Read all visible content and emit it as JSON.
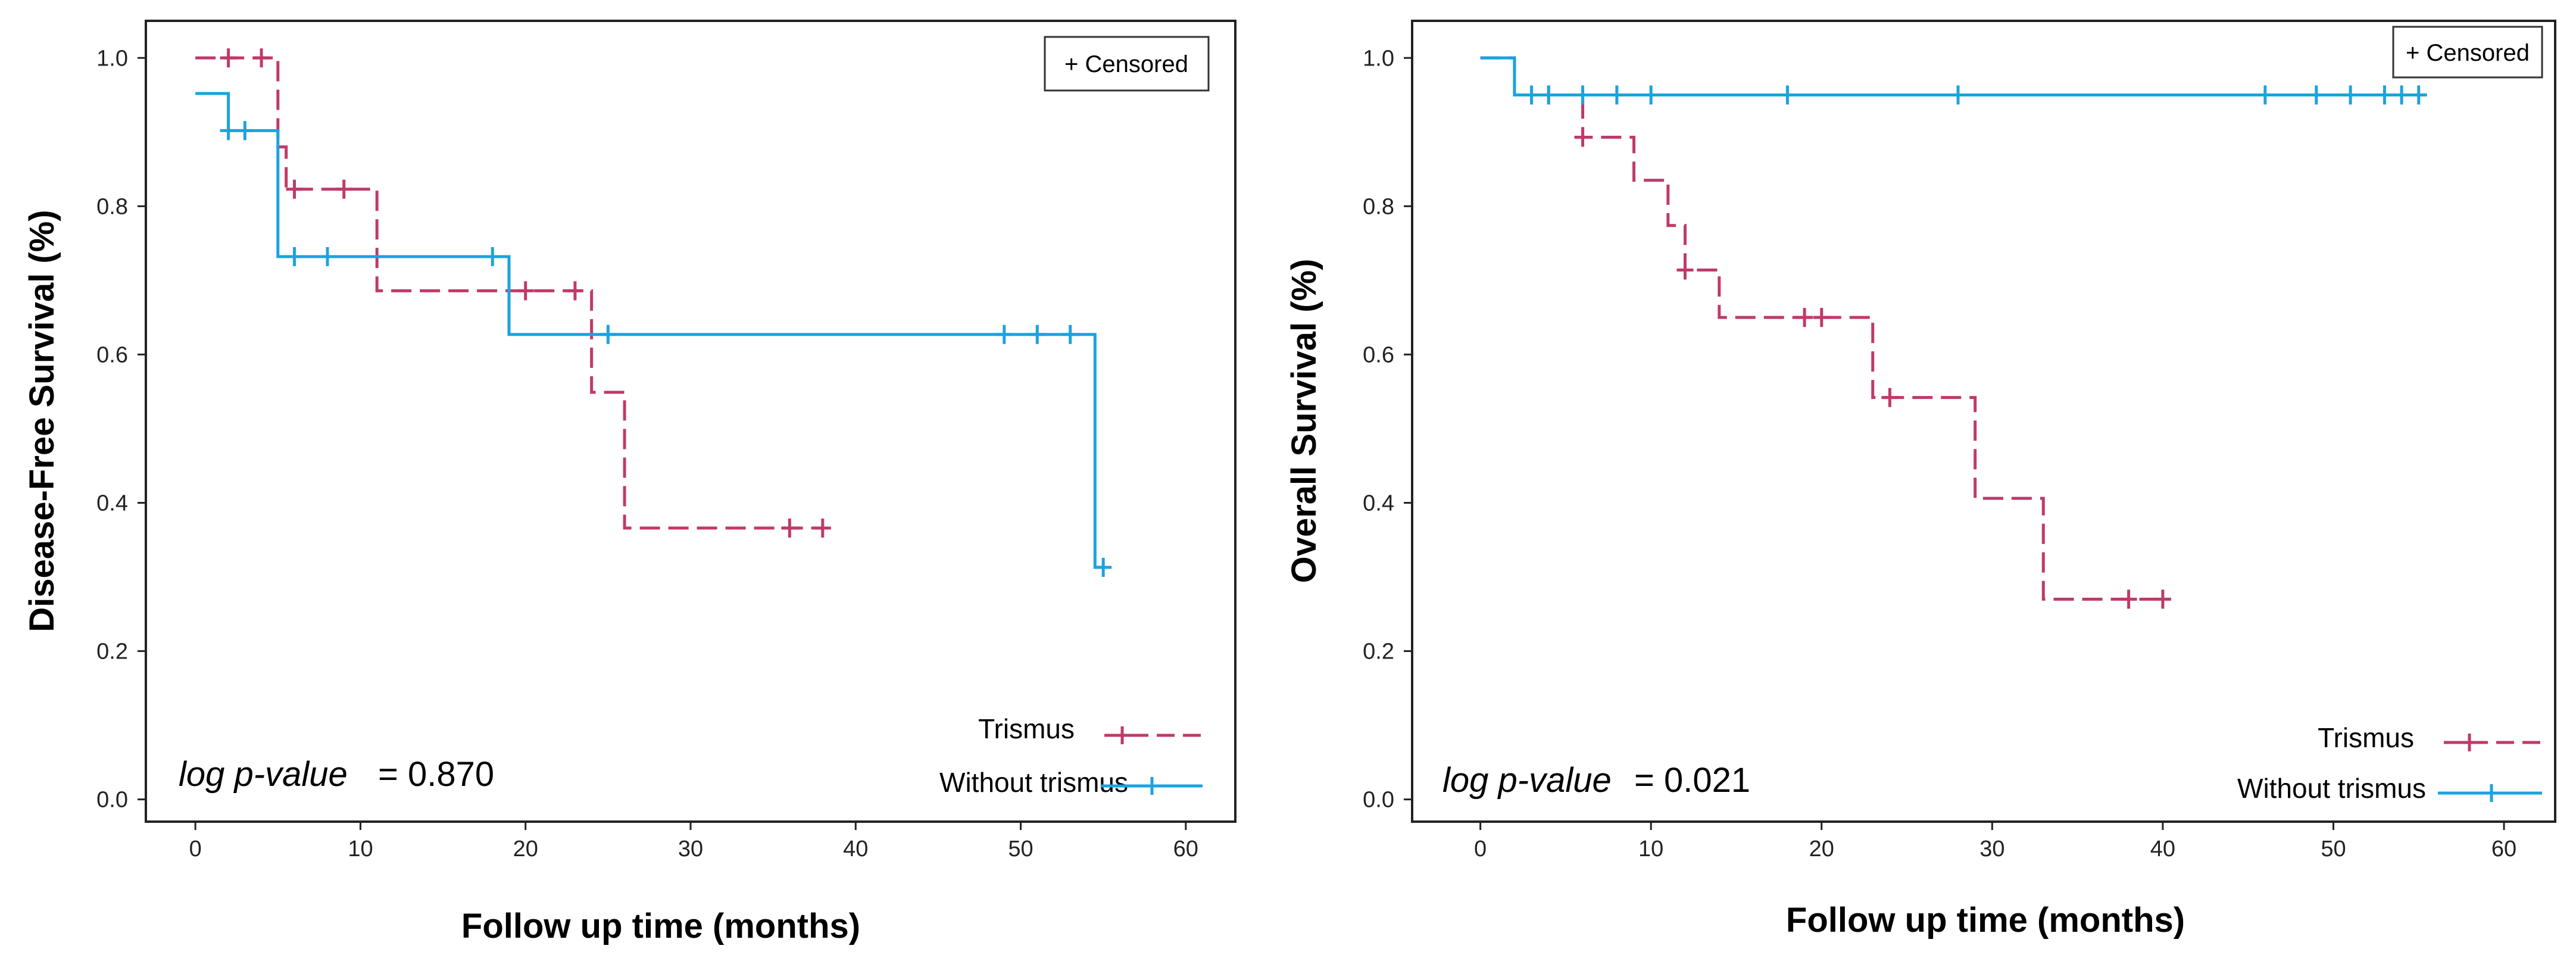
{
  "chart_data": [
    {
      "type": "line",
      "subtype": "kaplan-meier",
      "ylabel": "Disease-Free Survival  (%)",
      "xlabel": "Follow up time (months)",
      "xlim": [
        -3,
        63
      ],
      "ylim": [
        -0.03,
        1.05
      ],
      "xticks": [
        0,
        10,
        20,
        30,
        40,
        50,
        60
      ],
      "yticks": [
        0.0,
        0.2,
        0.4,
        0.6,
        0.8,
        1.0
      ],
      "censored_legend": "+ Censored",
      "pvalue_label": "log p-value",
      "pvalue_text": "= 0.870",
      "series": [
        {
          "name": "Trismus",
          "color": "#c0396b",
          "dash": true,
          "steps": [
            [
              0,
              1.0
            ],
            [
              5,
              0.88
            ],
            [
              5.5,
              0.823
            ],
            [
              11,
              0.686
            ],
            [
              24,
              0.549
            ],
            [
              26,
              0.366
            ],
            [
              38,
              0.366
            ]
          ],
          "censored": [
            [
              2,
              1.0
            ],
            [
              4,
              1.0
            ],
            [
              6,
              0.823
            ],
            [
              9,
              0.823
            ],
            [
              20,
              0.686
            ],
            [
              23,
              0.686
            ],
            [
              36,
              0.366
            ],
            [
              38,
              0.366
            ]
          ]
        },
        {
          "name": "Without trismus",
          "color": "#1aa3e0",
          "dash": false,
          "steps": [
            [
              0,
              0.952
            ],
            [
              2,
              0.902
            ],
            [
              5,
              0.732
            ],
            [
              19,
              0.627
            ],
            [
              54.5,
              0.313
            ],
            [
              55,
              0.313
            ]
          ],
          "censored": [
            [
              2,
              0.902
            ],
            [
              3,
              0.902
            ],
            [
              6,
              0.732
            ],
            [
              8,
              0.732
            ],
            [
              18,
              0.732
            ],
            [
              25,
              0.627
            ],
            [
              49,
              0.627
            ],
            [
              51,
              0.627
            ],
            [
              53,
              0.627
            ],
            [
              55,
              0.313
            ]
          ]
        }
      ]
    },
    {
      "type": "line",
      "subtype": "kaplan-meier",
      "ylabel": "Overall  Survival  (%)",
      "xlabel": "Follow up time (months)",
      "xlim": [
        -4,
        63
      ],
      "ylim": [
        -0.03,
        1.05
      ],
      "xticks": [
        0,
        10,
        20,
        30,
        40,
        50,
        60
      ],
      "yticks": [
        0.0,
        0.2,
        0.4,
        0.6,
        0.8,
        1.0
      ],
      "censored_legend": "+ Censored",
      "pvalue_label": "log p-value",
      "pvalue_text": "= 0.021",
      "series": [
        {
          "name": "Trismus",
          "color": "#c0396b",
          "dash": true,
          "steps": [
            [
              0,
              1.0
            ],
            [
              2,
              0.95
            ],
            [
              6,
              0.893
            ],
            [
              9,
              0.835
            ],
            [
              11,
              0.774
            ],
            [
              12,
              0.714
            ],
            [
              14,
              0.65
            ],
            [
              23,
              0.542
            ],
            [
              29,
              0.406
            ],
            [
              33,
              0.27
            ],
            [
              40,
              0.27
            ]
          ],
          "censored": [
            [
              4,
              0.95
            ],
            [
              6,
              0.893
            ],
            [
              12,
              0.714
            ],
            [
              19,
              0.65
            ],
            [
              20,
              0.65
            ],
            [
              24,
              0.542
            ],
            [
              38,
              0.27
            ],
            [
              40,
              0.27
            ]
          ]
        },
        {
          "name": "Without trismus",
          "color": "#1aa3e0",
          "dash": false,
          "steps": [
            [
              0,
              1.0
            ],
            [
              2,
              0.95
            ],
            [
              55,
              0.95
            ]
          ],
          "censored": [
            [
              3,
              0.95
            ],
            [
              4,
              0.95
            ],
            [
              6,
              0.95
            ],
            [
              8,
              0.95
            ],
            [
              10,
              0.95
            ],
            [
              18,
              0.95
            ],
            [
              28,
              0.95
            ],
            [
              46,
              0.95
            ],
            [
              49,
              0.95
            ],
            [
              51,
              0.95
            ],
            [
              53,
              0.95
            ],
            [
              54,
              0.95
            ],
            [
              55,
              0.95
            ]
          ]
        }
      ]
    }
  ]
}
